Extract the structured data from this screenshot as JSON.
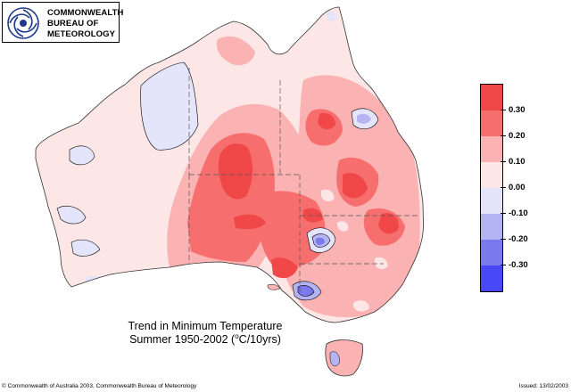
{
  "logo": {
    "lines": [
      "COMMONWEALTH",
      "BUREAU OF",
      "METEOROLOGY"
    ]
  },
  "title": {
    "line1": "Trend in Minimum Temperature",
    "line2_prefix": "Summer  1950-2002 (",
    "line2_sup": "o",
    "line2_suffix": "C/10yrs)"
  },
  "legend": {
    "items": [
      {
        "label": "0.30",
        "color": "#f04848"
      },
      {
        "label": "0.20",
        "color": "#f66e6e"
      },
      {
        "label": "0.10",
        "color": "#fab2b2"
      },
      {
        "label": "0.00",
        "color": "#fde6e6"
      },
      {
        "label": "-0.10",
        "color": "#e4e4fb"
      },
      {
        "label": "-0.20",
        "color": "#b4b4f3"
      },
      {
        "label": "-0.30",
        "color": "#7a7aee"
      },
      {
        "label": "",
        "color": "#4848f6"
      }
    ]
  },
  "footer": {
    "copyright": "© Commonwealth of Australia 2003, Commonwealth Bureau of Meteorology",
    "issued": "Issued: 13/02/2003"
  }
}
